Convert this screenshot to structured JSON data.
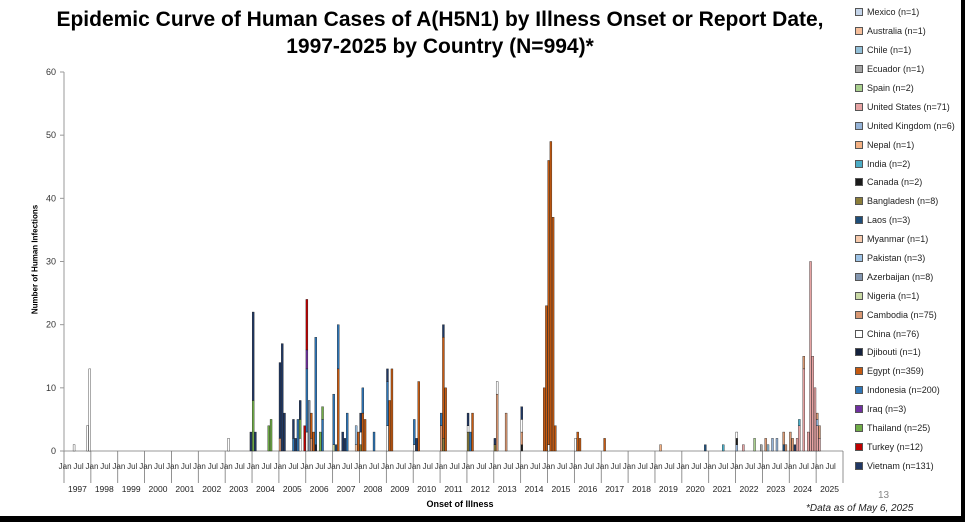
{
  "chart_data": {
    "type": "bar",
    "title": "Epidemic Curve of Human Cases of A(H5N1) by Illness Onset or Report Date, 1997-2025 by Country (N=994)*",
    "xlabel": "Onset of Illness",
    "ylabel": "Number of Human Infections",
    "ylim": [
      0,
      60
    ],
    "yticks": [
      0,
      10,
      20,
      30,
      40,
      50,
      60
    ],
    "month_tick_labels": [
      "Jan",
      "Jul"
    ],
    "year_labels": [
      "1997",
      "1998",
      "1999",
      "2000",
      "2001",
      "2002",
      "2003",
      "2004",
      "2005",
      "2006",
      "2007",
      "2008",
      "2009",
      "2010",
      "2011",
      "2012",
      "2013",
      "2014",
      "2015",
      "2016",
      "2017",
      "2018",
      "2019",
      "2020",
      "2021",
      "2022",
      "2023",
      "2024",
      "2025"
    ],
    "legend_position": "right",
    "series": [
      {
        "name": "Mexico (n=1)",
        "color": "#c5d5ea",
        "points": []
      },
      {
        "name": "Australia (n=1)",
        "color": "#f6bf9c",
        "points": []
      },
      {
        "name": "Chile (n=1)",
        "color": "#93c0d8",
        "points": [
          [
            "2023-03",
            1
          ]
        ]
      },
      {
        "name": "Ecuador (n=1)",
        "color": "#a5a5a5",
        "points": [
          [
            "2022-12",
            1
          ]
        ]
      },
      {
        "name": "Spain (n=2)",
        "color": "#a9d08e",
        "points": [
          [
            "2022-09",
            2
          ]
        ]
      },
      {
        "name": "United States (n=71)",
        "color": "#e6a3a3",
        "points": [
          [
            "2022-04",
            1
          ],
          [
            "2024-04",
            2
          ],
          [
            "2024-05",
            4
          ],
          [
            "2024-07",
            13
          ],
          [
            "2024-09",
            3
          ],
          [
            "2024-10",
            30
          ],
          [
            "2024-11",
            15
          ],
          [
            "2024-12",
            10
          ],
          [
            "2025-01",
            4
          ],
          [
            "2025-02",
            2
          ]
        ]
      },
      {
        "name": "United Kingdom (n=6)",
        "color": "#95b3d7",
        "points": [
          [
            "2022-01",
            1
          ],
          [
            "2023-05",
            2
          ],
          [
            "2023-07",
            2
          ],
          [
            "2025-01",
            1
          ]
        ]
      },
      {
        "name": "Nepal (n=1)",
        "color": "#f4b183",
        "points": [
          [
            "2019-03",
            1
          ]
        ]
      },
      {
        "name": "India (n=2)",
        "color": "#4bacc6",
        "points": [
          [
            "2021-07",
            1
          ],
          [
            "2024-05",
            1
          ]
        ]
      },
      {
        "name": "Canada (n=2)",
        "color": "#1a1a1a",
        "points": [
          [
            "2014-01",
            1
          ],
          [
            "2022-01",
            1
          ]
        ]
      },
      {
        "name": "Bangladesh (n=8)",
        "color": "#8b7d3a",
        "points": [
          [
            "2008-01",
            1
          ],
          [
            "2011-02",
            2
          ],
          [
            "2012-01",
            3
          ],
          [
            "2013-01",
            1
          ]
        ]
      },
      {
        "name": "Laos (n=3)",
        "color": "#1f4e79",
        "points": [
          [
            "2007-02",
            1
          ],
          [
            "2020-11",
            1
          ],
          [
            "2023-10",
            1
          ]
        ]
      },
      {
        "name": "Myanmar (n=1)",
        "color": "#f7caac",
        "points": [
          [
            "2007-11",
            1
          ]
        ]
      },
      {
        "name": "Pakistan (n=3)",
        "color": "#9dc3e6",
        "points": [
          [
            "2007-11",
            3
          ]
        ]
      },
      {
        "name": "Azerbaijan (n=8)",
        "color": "#8497b0",
        "points": [
          [
            "2006-02",
            8
          ]
        ]
      },
      {
        "name": "Nigeria (n=1)",
        "color": "#c9d9a5",
        "points": [
          [
            "2007-01",
            1
          ]
        ]
      },
      {
        "name": "Cambodia (n=75)",
        "color": "#d99873",
        "points": [
          [
            "2005-01",
            2
          ],
          [
            "2006-03",
            2
          ],
          [
            "2011-01",
            4
          ],
          [
            "2013-02",
            9
          ],
          [
            "2013-06",
            6
          ],
          [
            "2014-01",
            2
          ],
          [
            "2023-02",
            2
          ],
          [
            "2023-10",
            2
          ],
          [
            "2023-11",
            1
          ],
          [
            "2024-01",
            3
          ],
          [
            "2024-02",
            2
          ],
          [
            "2024-07",
            2
          ],
          [
            "2025-01",
            1
          ],
          [
            "2025-02",
            2
          ]
        ]
      },
      {
        "name": "China (n=76)",
        "color": "#ffffff",
        "points": [
          [
            "1997-05",
            1
          ],
          [
            "1997-11",
            4
          ],
          [
            "1997-12",
            13
          ],
          [
            "2003-02",
            2
          ],
          [
            "2005-10",
            2
          ],
          [
            "2006-01",
            3
          ],
          [
            "2008-01",
            2
          ],
          [
            "2009-01",
            4
          ],
          [
            "2010-01",
            1
          ],
          [
            "2012-01",
            1
          ],
          [
            "2013-02",
            2
          ],
          [
            "2014-01",
            2
          ],
          [
            "2015-01",
            1
          ],
          [
            "2016-01",
            2
          ],
          [
            "2022-01",
            1
          ]
        ]
      },
      {
        "name": "Djibouti (n=1)",
        "color": "#14213d",
        "points": [
          [
            "2006-05",
            1
          ]
        ]
      },
      {
        "name": "Egypt (n=359)",
        "color": "#c55a11",
        "points": [
          [
            "2006-03",
            4
          ],
          [
            "2006-04",
            3
          ],
          [
            "2007-03",
            13
          ],
          [
            "2007-12",
            3
          ],
          [
            "2008-02",
            6
          ],
          [
            "2008-03",
            5
          ],
          [
            "2009-02",
            8
          ],
          [
            "2009-03",
            13
          ],
          [
            "2010-03",
            11
          ],
          [
            "2011-02",
            16
          ],
          [
            "2011-03",
            10
          ],
          [
            "2012-03",
            6
          ],
          [
            "2014-11",
            10
          ],
          [
            "2014-12",
            23
          ],
          [
            "2015-01",
            45
          ],
          [
            "2015-02",
            49
          ],
          [
            "2015-03",
            37
          ],
          [
            "2015-04",
            4
          ],
          [
            "2016-02",
            3
          ],
          [
            "2016-03",
            2
          ],
          [
            "2017-02",
            2
          ]
        ]
      },
      {
        "name": "Indonesia (n=200)",
        "color": "#2e75b6",
        "points": [
          [
            "2005-07",
            2
          ],
          [
            "2005-09",
            5
          ],
          [
            "2006-01",
            10
          ],
          [
            "2006-05",
            17
          ],
          [
            "2006-08",
            5
          ],
          [
            "2007-01",
            8
          ],
          [
            "2007-03",
            7
          ],
          [
            "2007-07",
            6
          ],
          [
            "2008-02",
            4
          ],
          [
            "2008-07",
            3
          ],
          [
            "2009-01",
            7
          ],
          [
            "2010-01",
            4
          ],
          [
            "2011-01",
            2
          ],
          [
            "2012-02",
            3
          ]
        ]
      },
      {
        "name": "Iraq (n=3)",
        "color": "#7030a0",
        "points": [
          [
            "2006-01",
            3
          ]
        ]
      },
      {
        "name": "Thailand (n=25)",
        "color": "#70ad47",
        "points": [
          [
            "2004-01",
            8
          ],
          [
            "2004-08",
            4
          ],
          [
            "2004-09",
            5
          ],
          [
            "2005-10",
            3
          ],
          [
            "2006-07",
            3
          ],
          [
            "2006-08",
            2
          ]
        ]
      },
      {
        "name": "Turkey (n=12)",
        "color": "#c00000",
        "points": [
          [
            "2005-12",
            4
          ],
          [
            "2006-01",
            8
          ]
        ]
      },
      {
        "name": "Vietnam (n=131)",
        "color": "#203864",
        "points": [
          [
            "2003-12",
            3
          ],
          [
            "2004-01",
            14
          ],
          [
            "2004-02",
            3
          ],
          [
            "2005-01",
            12
          ],
          [
            "2005-02",
            17
          ],
          [
            "2005-03",
            6
          ],
          [
            "2005-07",
            3
          ],
          [
            "2005-08",
            2
          ],
          [
            "2005-10",
            3
          ],
          [
            "2007-05",
            3
          ],
          [
            "2007-06",
            2
          ],
          [
            "2008-01",
            3
          ],
          [
            "2009-01",
            2
          ],
          [
            "2010-02",
            2
          ],
          [
            "2011-02",
            2
          ],
          [
            "2012-01",
            2
          ],
          [
            "2013-01",
            1
          ],
          [
            "2014-01",
            2
          ],
          [
            "2024-03",
            1
          ]
        ]
      }
    ]
  },
  "footnote": "*Data as of May 6, 2025",
  "page_number": "13"
}
